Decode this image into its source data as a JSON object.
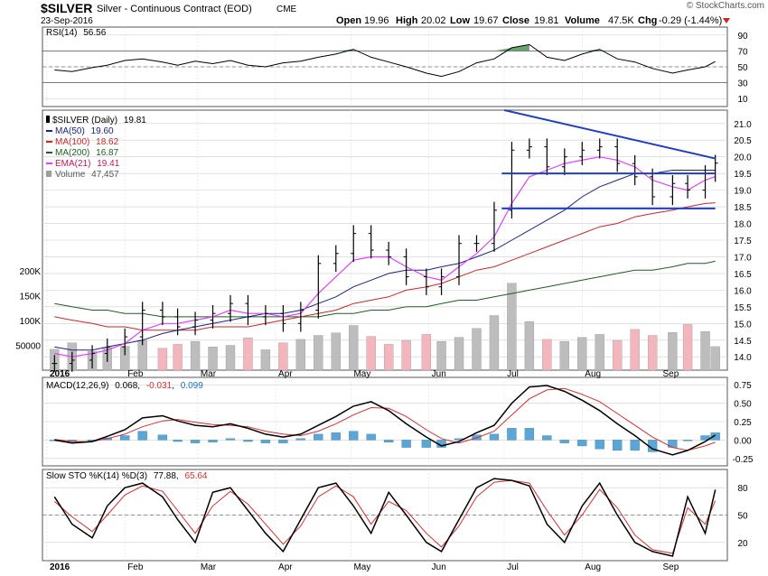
{
  "header": {
    "symbol": "$SILVER",
    "description": "Silver - Continuous Contract (EOD)",
    "exchange": "CME",
    "date": "23-Sep-2016",
    "open_label": "Open",
    "open": "19.96",
    "high_label": "High",
    "high": "20.02",
    "low_label": "Low",
    "low": "19.67",
    "close_label": "Close",
    "close": "19.81",
    "volume_label": "Volume",
    "volume": "47.5K",
    "chg_label": "Chg",
    "chg": "-0.29 (-1.44%)",
    "watermark": "© StockCharts.com"
  },
  "colors": {
    "price_bar": "#000000",
    "ma50": "#1a237e",
    "ma100": "#c62828",
    "ma200": "#1b5e20",
    "ema21": "#e040fb",
    "volume_up": "#bdbdbd",
    "volume_down": "#f4b6bd",
    "trendline": "#1e3fbf",
    "rsi_fill": "#2e7d32",
    "macd_line": "#000000",
    "signal_line": "#d32f2f",
    "histogram": "#5aa6d6",
    "sto_k": "#000000",
    "sto_d": "#d32f2f"
  },
  "chart_data": [
    {
      "type": "line",
      "name": "RSI(14)",
      "legend": {
        "label": "RSI(14)",
        "value": "56.56"
      },
      "ylim": [
        0,
        100
      ],
      "y_ticks": [
        "90",
        "70",
        "50",
        "30",
        "10"
      ],
      "x": [
        "2016-01-04",
        "2016-01-11",
        "2016-01-19",
        "2016-01-25",
        "2016-02-01",
        "2016-02-08",
        "2016-02-16",
        "2016-02-22",
        "2016-02-29",
        "2016-03-07",
        "2016-03-14",
        "2016-03-21",
        "2016-03-28",
        "2016-04-04",
        "2016-04-11",
        "2016-04-18",
        "2016-04-25",
        "2016-05-02",
        "2016-05-09",
        "2016-05-16",
        "2016-05-23",
        "2016-05-31",
        "2016-06-06",
        "2016-06-13",
        "2016-06-20",
        "2016-06-27",
        "2016-07-04",
        "2016-07-11",
        "2016-07-18",
        "2016-07-25",
        "2016-08-01",
        "2016-08-08",
        "2016-08-15",
        "2016-08-22",
        "2016-08-29",
        "2016-09-06",
        "2016-09-12",
        "2016-09-19",
        "2016-09-23"
      ],
      "values": [
        46,
        44,
        49,
        52,
        58,
        60,
        56,
        52,
        57,
        54,
        58,
        52,
        50,
        55,
        57,
        62,
        66,
        72,
        62,
        56,
        50,
        42,
        38,
        44,
        55,
        60,
        74,
        78,
        62,
        58,
        66,
        72,
        60,
        56,
        48,
        42,
        46,
        50,
        56.56
      ]
    },
    {
      "type": "bar",
      "name": "$SILVER (Daily)",
      "legend": [
        {
          "label": "$SILVER (Daily)",
          "value": "19.81"
        },
        {
          "label": "MA(50)",
          "value": "19.60"
        },
        {
          "label": "MA(100)",
          "value": "18.62"
        },
        {
          "label": "MA(200)",
          "value": "16.87"
        },
        {
          "label": "EMA(21)",
          "value": "19.41"
        },
        {
          "label": "Volume",
          "value": "47,457"
        }
      ],
      "ylim": [
        13.6,
        21.4
      ],
      "y_ticks": [
        "21.0",
        "20.5",
        "20.0",
        "19.5",
        "19.0",
        "18.5",
        "18.0",
        "17.5",
        "17.0",
        "16.5",
        "16.0",
        "15.5",
        "15.0",
        "14.5",
        "14.0"
      ],
      "volume_ticks": [
        "200K",
        "150K",
        "100K",
        "50000"
      ],
      "x_labels": [
        "2016",
        "Feb",
        "Mar",
        "Apr",
        "May",
        "Jun",
        "Jul",
        "Aug",
        "Sep"
      ],
      "x": [
        "2016-01-04",
        "2016-01-11",
        "2016-01-19",
        "2016-01-25",
        "2016-02-01",
        "2016-02-08",
        "2016-02-16",
        "2016-02-22",
        "2016-02-29",
        "2016-03-07",
        "2016-03-14",
        "2016-03-21",
        "2016-03-28",
        "2016-04-04",
        "2016-04-11",
        "2016-04-18",
        "2016-04-25",
        "2016-05-02",
        "2016-05-09",
        "2016-05-16",
        "2016-05-23",
        "2016-05-31",
        "2016-06-06",
        "2016-06-13",
        "2016-06-20",
        "2016-06-27",
        "2016-07-04",
        "2016-07-11",
        "2016-07-18",
        "2016-07-25",
        "2016-08-01",
        "2016-08-08",
        "2016-08-15",
        "2016-08-22",
        "2016-08-29",
        "2016-09-06",
        "2016-09-12",
        "2016-09-19",
        "2016-09-23"
      ],
      "series": [
        {
          "key": "close",
          "values": [
            13.8,
            13.9,
            14.1,
            14.3,
            14.6,
            15.4,
            15.2,
            14.9,
            15.1,
            15.3,
            15.6,
            15.2,
            15.3,
            15.0,
            15.4,
            16.8,
            17.1,
            17.7,
            17.2,
            17.0,
            16.4,
            16.1,
            16.4,
            17.4,
            17.4,
            18.4,
            20.2,
            20.3,
            19.7,
            20.0,
            20.2,
            20.3,
            19.8,
            19.4,
            18.8,
            19.2,
            19.0,
            19.5,
            19.81
          ]
        },
        {
          "key": "ma50",
          "values": [
            14.3,
            14.2,
            14.2,
            14.3,
            14.4,
            14.5,
            14.7,
            14.8,
            14.9,
            15.0,
            15.1,
            15.2,
            15.3,
            15.3,
            15.4,
            15.6,
            15.8,
            16.1,
            16.3,
            16.5,
            16.6,
            16.6,
            16.7,
            16.8,
            17.0,
            17.2,
            17.5,
            17.8,
            18.1,
            18.4,
            18.8,
            19.1,
            19.3,
            19.5,
            19.5,
            19.6,
            19.6,
            19.6,
            19.6
          ]
        },
        {
          "key": "ma100",
          "values": [
            15.2,
            15.1,
            15.0,
            14.9,
            14.9,
            14.8,
            14.8,
            14.8,
            14.8,
            14.9,
            14.9,
            14.9,
            15.0,
            15.1,
            15.2,
            15.3,
            15.4,
            15.6,
            15.7,
            15.8,
            16.0,
            16.1,
            16.2,
            16.4,
            16.6,
            16.7,
            16.9,
            17.1,
            17.3,
            17.5,
            17.7,
            17.9,
            18.0,
            18.2,
            18.3,
            18.4,
            18.5,
            18.6,
            18.62
          ]
        },
        {
          "key": "ma200",
          "values": [
            15.6,
            15.5,
            15.4,
            15.4,
            15.3,
            15.3,
            15.2,
            15.2,
            15.2,
            15.2,
            15.2,
            15.2,
            15.2,
            15.2,
            15.2,
            15.2,
            15.3,
            15.3,
            15.4,
            15.4,
            15.5,
            15.5,
            15.6,
            15.7,
            15.7,
            15.8,
            15.9,
            16.0,
            16.1,
            16.2,
            16.3,
            16.4,
            16.5,
            16.6,
            16.6,
            16.7,
            16.8,
            16.8,
            16.87
          ]
        },
        {
          "key": "ema21",
          "values": [
            14.1,
            14.0,
            14.1,
            14.2,
            14.4,
            14.8,
            15.0,
            15.0,
            15.1,
            15.2,
            15.4,
            15.3,
            15.3,
            15.2,
            15.3,
            15.9,
            16.4,
            16.9,
            17.0,
            17.0,
            16.7,
            16.4,
            16.3,
            16.7,
            17.1,
            17.6,
            18.6,
            19.4,
            19.6,
            19.8,
            19.9,
            20.0,
            19.9,
            19.7,
            19.3,
            19.1,
            19.0,
            19.3,
            19.41
          ]
        },
        {
          "key": "volume",
          "values": [
            42000,
            55000,
            38000,
            46000,
            48000,
            60000,
            44000,
            52000,
            58000,
            47000,
            50000,
            65000,
            41000,
            55000,
            62000,
            70000,
            75000,
            90000,
            68000,
            52000,
            60000,
            72000,
            58000,
            66000,
            84000,
            110000,
            175000,
            98000,
            62000,
            58000,
            66000,
            72000,
            60000,
            82000,
            70000,
            76000,
            92000,
            78000,
            47457
          ]
        }
      ],
      "trendlines": [
        {
          "label": "descending resistance",
          "x": [
            "2016-07-01",
            "2016-09-23"
          ],
          "y": [
            21.4,
            19.95
          ]
        },
        {
          "label": "upper horizontal",
          "x": [
            "2016-06-30",
            "2016-09-23"
          ],
          "y": [
            19.5,
            19.5
          ]
        },
        {
          "label": "lower horizontal",
          "x": [
            "2016-06-30",
            "2016-09-23"
          ],
          "y": [
            18.45,
            18.45
          ]
        }
      ]
    },
    {
      "type": "line",
      "name": "MACD(12,26,9)",
      "legend": {
        "label": "MACD(12,26,9)",
        "values": [
          "0.068",
          "-0.031",
          "0.099"
        ]
      },
      "ylim": [
        -0.35,
        0.85
      ],
      "y_ticks": [
        "0.75",
        "0.50",
        "0.25",
        "0.00",
        "-0.25"
      ],
      "x": [
        "2016-01-04",
        "2016-01-11",
        "2016-01-19",
        "2016-01-25",
        "2016-02-01",
        "2016-02-08",
        "2016-02-16",
        "2016-02-22",
        "2016-02-29",
        "2016-03-07",
        "2016-03-14",
        "2016-03-21",
        "2016-03-28",
        "2016-04-04",
        "2016-04-11",
        "2016-04-18",
        "2016-04-25",
        "2016-05-02",
        "2016-05-09",
        "2016-05-16",
        "2016-05-23",
        "2016-05-31",
        "2016-06-06",
        "2016-06-13",
        "2016-06-20",
        "2016-06-27",
        "2016-07-04",
        "2016-07-11",
        "2016-07-18",
        "2016-07-25",
        "2016-08-01",
        "2016-08-08",
        "2016-08-15",
        "2016-08-22",
        "2016-08-29",
        "2016-09-06",
        "2016-09-12",
        "2016-09-19",
        "2016-09-23"
      ],
      "series": [
        {
          "key": "macd",
          "values": [
            0.0,
            -0.04,
            -0.02,
            0.05,
            0.14,
            0.3,
            0.33,
            0.26,
            0.2,
            0.18,
            0.22,
            0.16,
            0.08,
            0.04,
            0.08,
            0.2,
            0.32,
            0.46,
            0.52,
            0.4,
            0.22,
            0.04,
            -0.08,
            -0.02,
            0.1,
            0.2,
            0.5,
            0.72,
            0.74,
            0.66,
            0.54,
            0.4,
            0.22,
            0.06,
            -0.12,
            -0.2,
            -0.14,
            -0.02,
            0.068
          ]
        },
        {
          "key": "signal",
          "values": [
            0.01,
            -0.02,
            -0.02,
            0.02,
            0.08,
            0.18,
            0.26,
            0.28,
            0.24,
            0.21,
            0.2,
            0.18,
            0.12,
            0.08,
            0.06,
            0.12,
            0.22,
            0.34,
            0.44,
            0.43,
            0.32,
            0.14,
            0.02,
            -0.04,
            0.03,
            0.12,
            0.34,
            0.56,
            0.68,
            0.7,
            0.62,
            0.52,
            0.36,
            0.2,
            0.04,
            -0.1,
            -0.14,
            -0.08,
            -0.031
          ]
        },
        {
          "key": "histogram",
          "values": [
            -0.01,
            -0.02,
            0.0,
            0.03,
            0.06,
            0.12,
            0.07,
            -0.02,
            -0.04,
            -0.03,
            0.02,
            -0.02,
            -0.04,
            -0.04,
            0.02,
            0.08,
            0.1,
            0.12,
            0.08,
            -0.03,
            -0.1,
            -0.1,
            -0.1,
            0.02,
            0.07,
            0.08,
            0.16,
            0.16,
            0.06,
            -0.04,
            -0.08,
            -0.12,
            -0.14,
            -0.14,
            -0.16,
            -0.1,
            0.0,
            0.06,
            0.099
          ]
        }
      ]
    },
    {
      "type": "line",
      "name": "Slow STO %K(14) %D(3)",
      "legend": {
        "label": "Slow STO %K(14) %D(3)",
        "values": [
          "77.88",
          "65.64"
        ]
      },
      "ylim": [
        0,
        100
      ],
      "y_ticks": [
        "80",
        "50",
        "20"
      ],
      "x": [
        "2016-01-04",
        "2016-01-11",
        "2016-01-19",
        "2016-01-25",
        "2016-02-01",
        "2016-02-08",
        "2016-02-16",
        "2016-02-22",
        "2016-02-29",
        "2016-03-07",
        "2016-03-14",
        "2016-03-21",
        "2016-03-28",
        "2016-04-04",
        "2016-04-11",
        "2016-04-18",
        "2016-04-25",
        "2016-05-02",
        "2016-05-09",
        "2016-05-16",
        "2016-05-23",
        "2016-05-31",
        "2016-06-06",
        "2016-06-13",
        "2016-06-20",
        "2016-06-27",
        "2016-07-04",
        "2016-07-11",
        "2016-07-18",
        "2016-07-25",
        "2016-08-01",
        "2016-08-08",
        "2016-08-15",
        "2016-08-22",
        "2016-08-29",
        "2016-09-06",
        "2016-09-12",
        "2016-09-19",
        "2016-09-23"
      ],
      "series": [
        {
          "key": "k",
          "values": [
            70,
            40,
            25,
            60,
            80,
            85,
            70,
            45,
            20,
            75,
            80,
            55,
            30,
            10,
            45,
            80,
            85,
            60,
            30,
            75,
            50,
            20,
            10,
            45,
            80,
            90,
            88,
            82,
            40,
            20,
            60,
            85,
            50,
            20,
            10,
            5,
            70,
            30,
            77.88
          ]
        },
        {
          "key": "d",
          "values": [
            65,
            48,
            32,
            50,
            72,
            82,
            76,
            55,
            30,
            60,
            76,
            62,
            40,
            18,
            38,
            70,
            82,
            70,
            40,
            65,
            55,
            30,
            15,
            38,
            70,
            86,
            88,
            85,
            55,
            28,
            50,
            78,
            58,
            28,
            12,
            8,
            58,
            40,
            65.64
          ]
        }
      ]
    }
  ]
}
